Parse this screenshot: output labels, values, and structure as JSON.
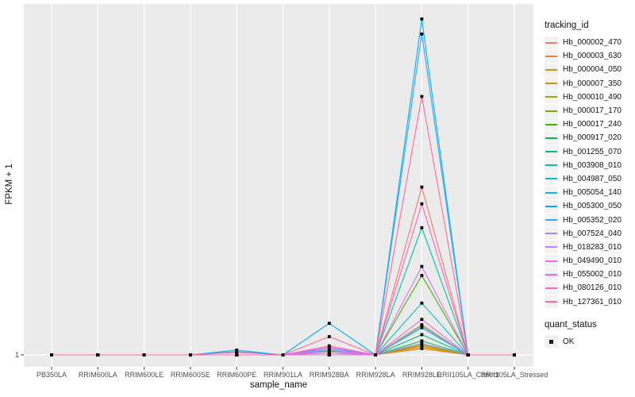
{
  "chart_data": {
    "type": "line",
    "title": "",
    "xlabel": "sample_name",
    "ylabel": "FPKM + 1",
    "yscale": "log10",
    "ylim_fpkm_plus1": [
      1,
      20000
    ],
    "ytick_labels": [
      "1"
    ],
    "grid": "vertical-white-on-gray",
    "panel_bg": "#EBEBEB",
    "gridline_color": "#FFFFFF",
    "tick_text_color": "#4D4D4D",
    "point_color": "#000000",
    "point_shape": "square",
    "categories": [
      "PB350LA",
      "RRIM600LA",
      "RRIM600LE",
      "RRIM600SE",
      "RRIM600PE",
      "RRIM901LA",
      "RRIM928BA",
      "RRIM928LA",
      "RRIM928LE",
      "RRII105LA_Control",
      "RRII105LA_Stressed"
    ],
    "legend": {
      "title": "tracking_id",
      "position": "right"
    },
    "quant_legend": {
      "title": "quant_status",
      "items": [
        "OK"
      ]
    },
    "series": [
      {
        "name": "Hb_000002_470",
        "color": "#F8766D",
        "values": [
          1,
          1,
          1,
          1,
          1,
          1,
          1.05,
          1,
          130,
          1,
          1
        ]
      },
      {
        "name": "Hb_000003_630",
        "color": "#EA8331",
        "values": [
          1,
          1,
          1,
          1,
          1,
          1,
          1,
          1,
          1.2,
          1,
          1
        ]
      },
      {
        "name": "Hb_000004_050",
        "color": "#D89000",
        "values": [
          1,
          1,
          1,
          1,
          1,
          1,
          1,
          1,
          1.25,
          1,
          1
        ]
      },
      {
        "name": "Hb_000007_350",
        "color": "#C09B00",
        "values": [
          1,
          1,
          1,
          1,
          1,
          1,
          1,
          1,
          1.3,
          1,
          1
        ]
      },
      {
        "name": "Hb_000010_490",
        "color": "#A3A500",
        "values": [
          1,
          1,
          1,
          1,
          1,
          1,
          1,
          1,
          2.4,
          1,
          1
        ]
      },
      {
        "name": "Hb_000017_170",
        "color": "#7CAE00",
        "values": [
          1,
          1,
          1,
          1,
          1,
          1,
          1,
          1,
          1.35,
          1,
          1
        ]
      },
      {
        "name": "Hb_000017_240",
        "color": "#39B600",
        "values": [
          1,
          1,
          1,
          1,
          1,
          1,
          1.12,
          1,
          10,
          1,
          1
        ]
      },
      {
        "name": "Hb_000917_020",
        "color": "#00BB4E",
        "values": [
          1,
          1,
          1,
          1,
          1,
          1,
          1,
          1,
          1.5,
          1,
          1
        ]
      },
      {
        "name": "Hb_001255_070",
        "color": "#00BF7D",
        "values": [
          1,
          1,
          1,
          1,
          1,
          1,
          1,
          1,
          1.8,
          1,
          1
        ]
      },
      {
        "name": "Hb_003908_010",
        "color": "#00C1A3",
        "values": [
          1,
          1,
          1,
          1,
          1,
          1,
          1,
          1,
          40,
          1,
          1
        ]
      },
      {
        "name": "Hb_004987_050",
        "color": "#00BFC4",
        "values": [
          1,
          1,
          1,
          1,
          1,
          1,
          1,
          1,
          4.5,
          1,
          1
        ]
      },
      {
        "name": "Hb_005054_140",
        "color": "#00BAE0",
        "values": [
          1,
          1,
          1,
          1,
          1.1,
          1,
          1,
          1,
          2.2,
          1,
          1
        ]
      },
      {
        "name": "Hb_005300_050",
        "color": "#00B0F6",
        "values": [
          1,
          1,
          1,
          1,
          1.15,
          1,
          2.5,
          1,
          17000,
          1,
          1
        ]
      },
      {
        "name": "Hb_005352_020",
        "color": "#35A2FF",
        "values": [
          1,
          1,
          1,
          1,
          1,
          1,
          1.2,
          1,
          11000,
          1,
          1
        ]
      },
      {
        "name": "Hb_007524_040",
        "color": "#9590FF",
        "values": [
          1,
          1,
          1,
          1,
          1,
          1,
          1.15,
          1,
          2.3,
          1,
          1
        ]
      },
      {
        "name": "Hb_018283_010",
        "color": "#C77CFF",
        "values": [
          1,
          1,
          1,
          1,
          1,
          1,
          1,
          1,
          1.4,
          1,
          1
        ]
      },
      {
        "name": "Hb_049490_010",
        "color": "#E76BF3",
        "values": [
          1,
          1,
          1,
          1,
          1,
          1,
          1.1,
          1,
          13,
          1,
          1
        ]
      },
      {
        "name": "Hb_055002_010",
        "color": "#FA62DB",
        "values": [
          1,
          1,
          1,
          1,
          1,
          1,
          1.25,
          1,
          2.8,
          1,
          1
        ]
      },
      {
        "name": "Hb_080126_010",
        "color": "#FF62BC",
        "values": [
          1,
          1,
          1,
          1,
          1,
          1,
          1.3,
          1,
          80,
          1,
          1
        ]
      },
      {
        "name": "Hb_127361_010",
        "color": "#FF6A98",
        "values": [
          1,
          1,
          1,
          1,
          1.08,
          1,
          1.7,
          1,
          1800,
          1,
          1
        ]
      }
    ]
  }
}
